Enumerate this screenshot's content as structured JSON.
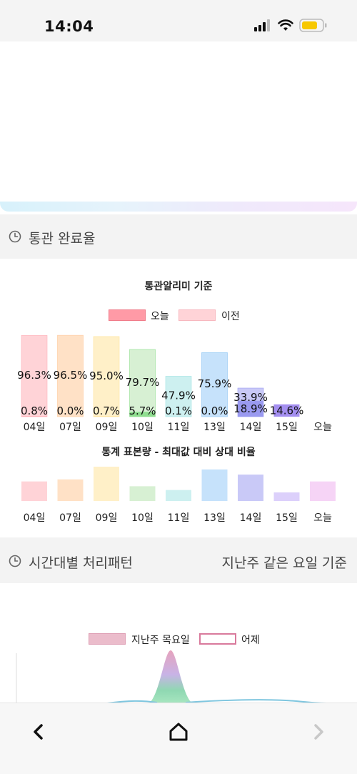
{
  "status_bar": {
    "time": "14:04"
  },
  "section_customs": {
    "title": "통관 완료율"
  },
  "chart1": {
    "title": "통관알리미 기준",
    "legend_today": "오늘",
    "legend_prev": "이전"
  },
  "chart2": {
    "title": "통계 표본량 - 최대값 대비 상대 비율"
  },
  "section_pattern": {
    "title": "시간대별 처리패턴",
    "subtitle": "지난주 같은 요일 기준"
  },
  "chart3": {
    "legend_lastweek": "지난주 목요일",
    "legend_yesterday": "어제"
  },
  "chart_data": [
    {
      "type": "bar",
      "title": "통관알리미 기준",
      "categories": [
        "04일",
        "07일",
        "09일",
        "10일",
        "11일",
        "13일",
        "14일",
        "15일",
        "오늘"
      ],
      "series": [
        {
          "name": "오늘",
          "values": [
            0.8,
            0.0,
            0.7,
            5.7,
            0.1,
            0.0,
            18.9,
            14.6,
            null
          ],
          "labels": [
            "0.8%",
            "0.0%",
            "0.7%",
            "5.7%",
            "0.1%",
            "0.0%",
            "18.9%",
            "14.6%",
            ""
          ]
        },
        {
          "name": "이전",
          "values": [
            96.3,
            96.5,
            95.0,
            79.7,
            47.9,
            75.9,
            33.9,
            null,
            null
          ],
          "labels": [
            "96.3%",
            "96.5%",
            "95.0%",
            "79.7%",
            "47.9%",
            "75.9%",
            "33.9%",
            "",
            ""
          ]
        }
      ],
      "colors": [
        "#ffd3d7",
        "#ffe1c6",
        "#fff0c8",
        "#d7f0d3",
        "#cdf0f0",
        "#c6e2fb",
        "#c9c9f7",
        "#dcd0fb",
        "#f6d4f6"
      ],
      "today_colors": [
        "#ffb0b8",
        "#ffc89a",
        "#ffe39a",
        "#8fde8f",
        "#9ee3e3",
        "#8cc4f3",
        "#9a9af0",
        "#a48ff0",
        "#f0aaf0"
      ],
      "ylim": [
        0,
        100
      ]
    },
    {
      "type": "bar",
      "title": "통계 표본량 - 최대값 대비 상대 비율",
      "categories": [
        "04일",
        "07일",
        "09일",
        "10일",
        "11일",
        "13일",
        "14일",
        "15일",
        "오늘"
      ],
      "values": [
        57,
        63,
        100,
        43,
        32,
        92,
        77,
        25,
        57
      ],
      "colors": [
        "#ffd3d7",
        "#ffe1c6",
        "#fff0c8",
        "#d7f0d3",
        "#cdf0f0",
        "#c6e2fb",
        "#c9c9f7",
        "#dcd0fb",
        "#f6d4f6"
      ],
      "ylim": [
        0,
        100
      ]
    },
    {
      "type": "area",
      "series": [
        {
          "name": "지난주 목요일"
        },
        {
          "name": "어제"
        }
      ]
    }
  ]
}
